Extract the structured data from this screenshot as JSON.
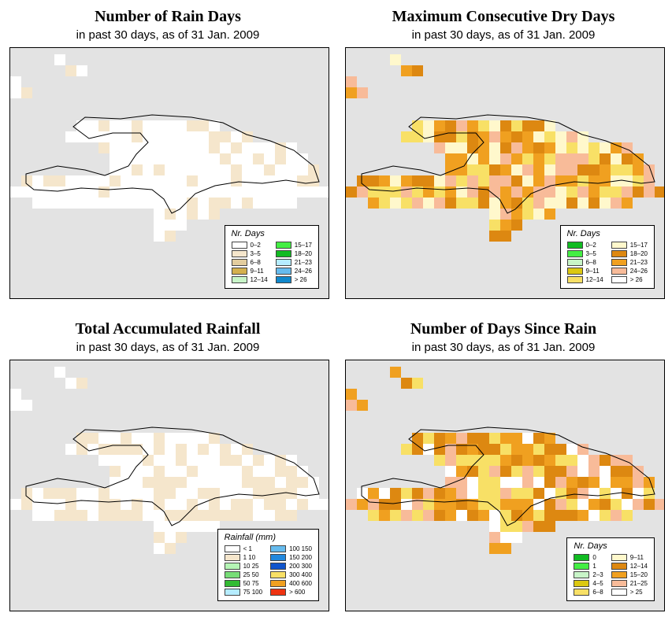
{
  "panels": [
    {
      "title": "Number of Rain Days",
      "subtitle": "in past 30 days, as of  31 Jan. 2009",
      "legend_title": "Nr. Days",
      "legend_items": [
        {
          "label": "0–2",
          "color": "#ffffff"
        },
        {
          "label": "3–5",
          "color": "#f5e6cc"
        },
        {
          "label": "6–8",
          "color": "#e3cd9e"
        },
        {
          "label": "9–11",
          "color": "#d4b04e"
        },
        {
          "label": "12–14",
          "color": "#c8f5c8"
        },
        {
          "label": "15–17",
          "color": "#44ee44"
        },
        {
          "label": "18–20",
          "color": "#11bb22"
        },
        {
          "label": "21–23",
          "color": "#b5ecff"
        },
        {
          "label": "24–26",
          "color": "#66bbee"
        },
        {
          "label": "> 26",
          "color": "#1188cc"
        }
      ]
    },
    {
      "title": "Maximum Consecutive Dry Days",
      "subtitle": "in past 30 days, as of  31 Jan. 2009",
      "legend_title": "Nr. Days",
      "legend_items": [
        {
          "label": "0–2",
          "color": "#11bb22"
        },
        {
          "label": "3–5",
          "color": "#44ee44"
        },
        {
          "label": "6–8",
          "color": "#c8f5c8"
        },
        {
          "label": "9–11",
          "color": "#dcc811"
        },
        {
          "label": "12–14",
          "color": "#f8e066"
        },
        {
          "label": "15–17",
          "color": "#fff8cc"
        },
        {
          "label": "18–20",
          "color": "#dd8811"
        },
        {
          "label": "21–23",
          "color": "#f0a020"
        },
        {
          "label": "24–26",
          "color": "#f8bb99"
        },
        {
          "label": "> 26",
          "color": "#ffffff"
        }
      ]
    },
    {
      "title": "Total Accumulated Rainfall",
      "subtitle": "in past 30 days, as of  31 Jan. 2009",
      "legend_title": "Rainfall (mm)",
      "legend_items": [
        {
          "label": "< 1",
          "color": "#ffffff"
        },
        {
          "label": "1    10",
          "color": "#f5e6cc"
        },
        {
          "label": "10    25",
          "color": "#b5f5b5"
        },
        {
          "label": "25    50",
          "color": "#77dd77"
        },
        {
          "label": "50    75",
          "color": "#33bb33"
        },
        {
          "label": "75   100",
          "color": "#b5ecff"
        },
        {
          "label": "100  150",
          "color": "#66bbee"
        },
        {
          "label": "150  200",
          "color": "#2288dd"
        },
        {
          "label": "200  300",
          "color": "#1155cc"
        },
        {
          "label": "300  400",
          "color": "#f8e066"
        },
        {
          "label": "400  600",
          "color": "#f0a020"
        },
        {
          "label": "> 600",
          "color": "#ee3311"
        }
      ]
    },
    {
      "title": "Number of Days Since Rain",
      "subtitle": "in past 30 days, as of  31 Jan. 2009",
      "legend_title": "Nr. Days",
      "legend_items": [
        {
          "label": "0",
          "color": "#11bb22"
        },
        {
          "label": "1",
          "color": "#44ee44"
        },
        {
          "label": "2–3",
          "color": "#c8f5c8"
        },
        {
          "label": "4–5",
          "color": "#dcc811"
        },
        {
          "label": "6–8",
          "color": "#f8e066"
        },
        {
          "label": "9–11",
          "color": "#fff8cc"
        },
        {
          "label": "12–14",
          "color": "#dd8811"
        },
        {
          "label": "15–20",
          "color": "#f0a020"
        },
        {
          "label": "21–25",
          "color": "#f8bb99"
        },
        {
          "label": "> 25",
          "color": "#ffffff"
        }
      ]
    }
  ],
  "colors": {
    "map_background": "#e3e3e3",
    "coastline": "#000000"
  }
}
